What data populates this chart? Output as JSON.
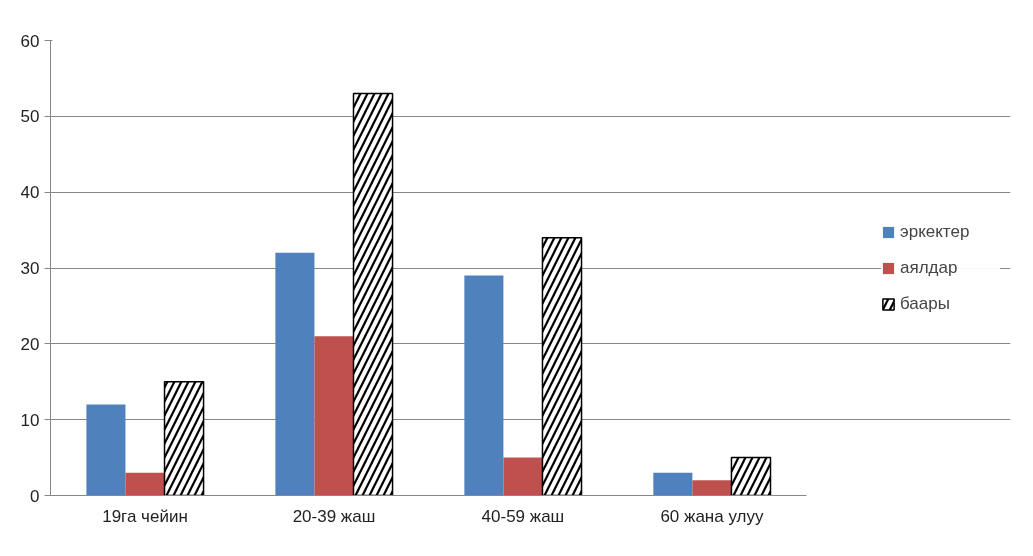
{
  "chart_data": {
    "type": "bar",
    "categories": [
      "19га чейин",
      "20-39 жаш",
      "40-59 жаш",
      "60 жана улуу"
    ],
    "series": [
      {
        "name": "эркектер",
        "color": "#4f81bd",
        "values": [
          12,
          32,
          29,
          3
        ]
      },
      {
        "name": "аялдар",
        "color": "#c0504d",
        "values": [
          3,
          21,
          5,
          2
        ]
      },
      {
        "name": "баары",
        "color": "#000000",
        "values": [
          15,
          53,
          34,
          5
        ]
      }
    ],
    "ylim": [
      0,
      60
    ],
    "yticks": [
      0,
      10,
      20,
      30,
      40,
      50,
      60
    ],
    "grid": "y",
    "legend": "right"
  }
}
